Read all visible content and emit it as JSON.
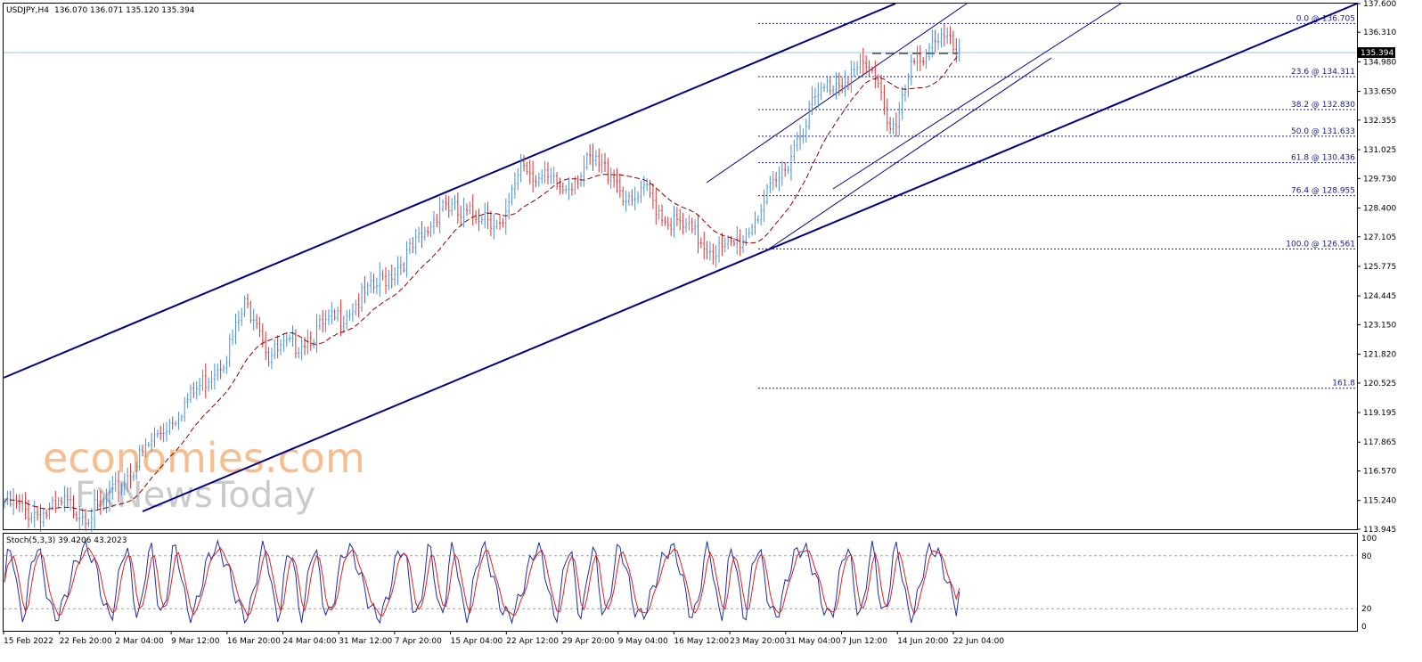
{
  "header": {
    "symbol": "USDJPY,H4",
    "ohlc": "136.070 136.071 135.120 135.394"
  },
  "stoch_header": "Stoch(5,3,3) 39.4206 43.2023",
  "price_box": "135.394",
  "watermark": {
    "line1": "economies.com",
    "line2": "FxNewsToday"
  },
  "colors": {
    "up": "#4a90d9",
    "down": "#e03030",
    "channel": "#00007f",
    "fib": "#1a1a8c",
    "ma": "#8b0000",
    "stoch_main": "#1f2fa0",
    "stoch_signal": "#e02020"
  },
  "chart_data": {
    "type": "candlestick",
    "x_tick_labels": [
      "15 Feb 2022",
      "22 Feb 20:00",
      "2 Mar 04:00",
      "9 Mar 12:00",
      "16 Mar 20:00",
      "24 Mar 04:00",
      "31 Mar 12:00",
      "7 Apr 20:00",
      "15 Apr 04:00",
      "22 Apr 12:00",
      "29 Apr 20:00",
      "9 May 04:00",
      "16 May 12:00",
      "23 May 20:00",
      "31 May 04:00",
      "7 Jun 12:00",
      "14 Jun 20:00",
      "22 Jun 04:00"
    ],
    "y_tick_labels": [
      "137.600",
      "136.310",
      "134.980",
      "133.650",
      "132.355",
      "131.025",
      "129.730",
      "128.400",
      "127.105",
      "125.775",
      "124.445",
      "123.150",
      "121.820",
      "120.525",
      "119.195",
      "117.865",
      "116.570",
      "115.240",
      "113.945"
    ],
    "ylim": [
      113.945,
      137.6
    ],
    "last_price": 135.394,
    "fibonacci": [
      {
        "label": "0.0 @ 136.705",
        "price": 136.705
      },
      {
        "label": "23.6 @ 134.311",
        "price": 134.311
      },
      {
        "label": "38.2 @ 132.830",
        "price": 132.83
      },
      {
        "label": "50.0 @ 131.633",
        "price": 131.633
      },
      {
        "label": "61.8 @ 130.436",
        "price": 130.436
      },
      {
        "label": "76.4 @ 128.955",
        "price": 128.955
      },
      {
        "label": "100.0 @ 126.561",
        "price": 126.561
      },
      {
        "label": "161.8",
        "price": 120.291
      }
    ],
    "anchors": [
      [
        0,
        115.4
      ],
      [
        7,
        115.0
      ],
      [
        14,
        114.9
      ],
      [
        20,
        115.3
      ],
      [
        28,
        114.9
      ],
      [
        33,
        115.2
      ],
      [
        42,
        116.8
      ],
      [
        50,
        118.3
      ],
      [
        58,
        119.5
      ],
      [
        66,
        120.8
      ],
      [
        74,
        122.1
      ],
      [
        80,
        124.2
      ],
      [
        84,
        123.9
      ],
      [
        88,
        122.0
      ],
      [
        98,
        122.6
      ],
      [
        110,
        123.6
      ],
      [
        122,
        124.9
      ],
      [
        132,
        126.2
      ],
      [
        140,
        127.4
      ],
      [
        146,
        129.0
      ],
      [
        152,
        128.2
      ],
      [
        160,
        128.5
      ],
      [
        166,
        127.6
      ],
      [
        172,
        130.8
      ],
      [
        178,
        130.0
      ],
      [
        186,
        129.5
      ],
      [
        195,
        130.7
      ],
      [
        203,
        130.2
      ],
      [
        208,
        128.7
      ],
      [
        214,
        129.4
      ],
      [
        220,
        128.2
      ],
      [
        228,
        127.6
      ],
      [
        236,
        126.8
      ],
      [
        240,
        126.7
      ],
      [
        246,
        127.3
      ],
      [
        252,
        128.7
      ],
      [
        258,
        129.9
      ],
      [
        264,
        131.8
      ],
      [
        269,
        133.3
      ],
      [
        274,
        134.1
      ],
      [
        280,
        134.6
      ],
      [
        286,
        134.9
      ],
      [
        291,
        134.5
      ],
      [
        294,
        132.7
      ],
      [
        297,
        132.3
      ],
      [
        302,
        134.8
      ],
      [
        306,
        135.6
      ],
      [
        310,
        136.4
      ],
      [
        314,
        136.1
      ],
      [
        318,
        135.39
      ]
    ],
    "ma_period": 20,
    "stoch_levels": [
      100,
      80,
      20,
      0
    ],
    "stoch_last": [
      39.4206,
      43.2023
    ]
  }
}
